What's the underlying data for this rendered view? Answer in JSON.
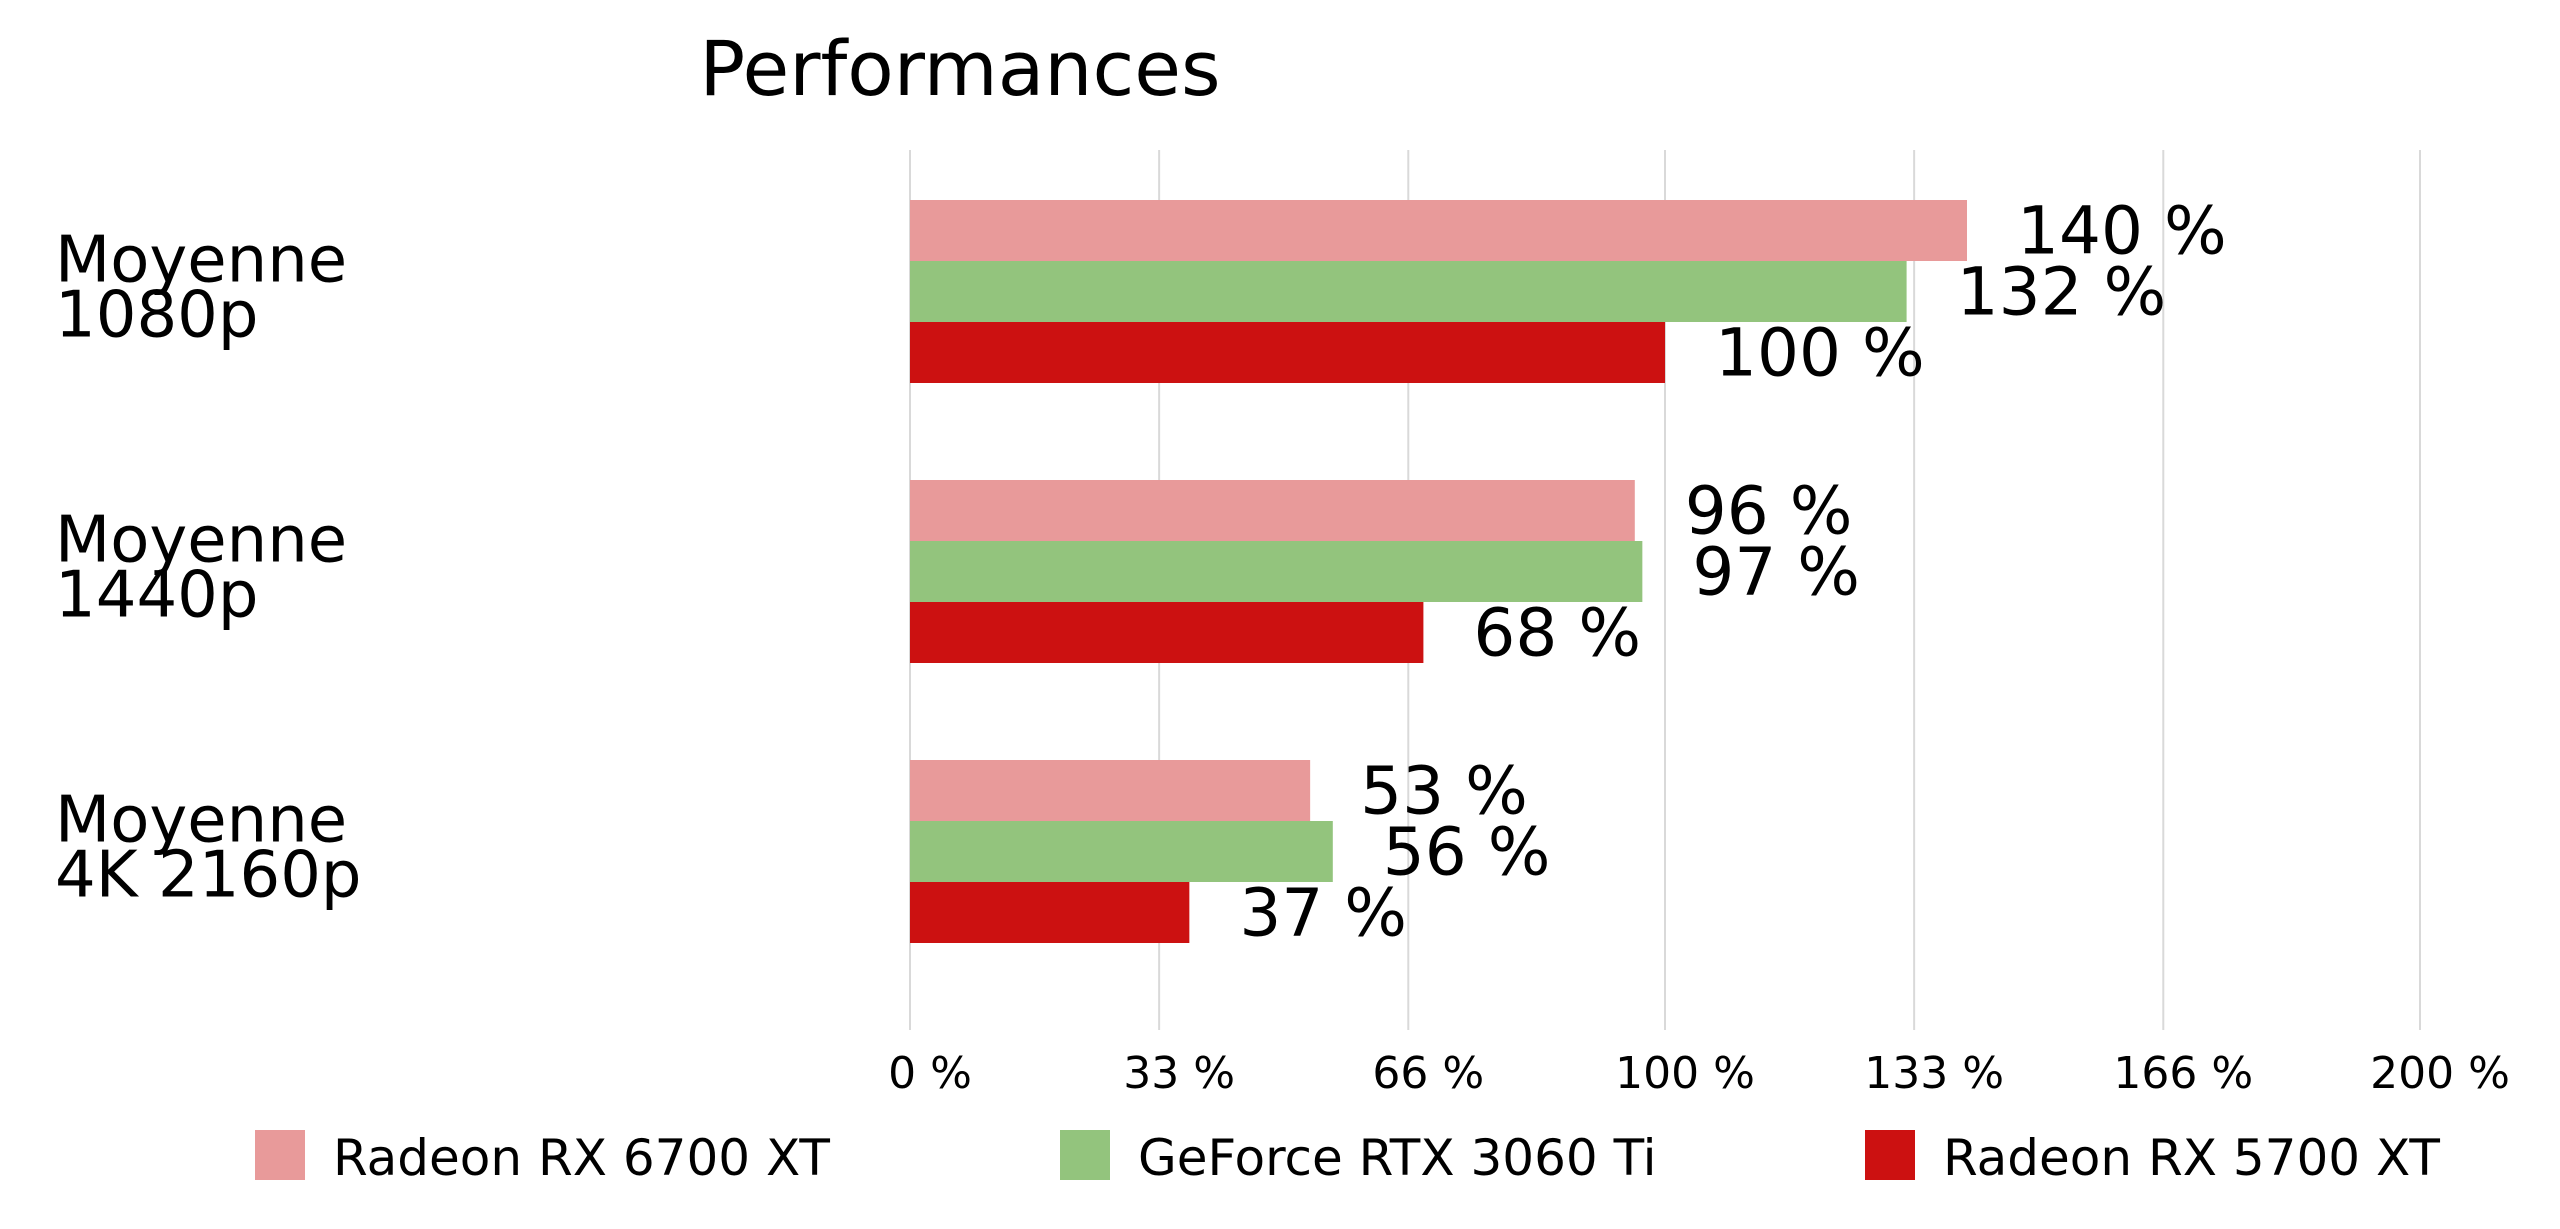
{
  "chart_data": {
    "type": "bar",
    "orientation": "horizontal",
    "title": "Performances",
    "categories": [
      "Moyenne 1080p",
      "Moyenne 1440p",
      "Moyenne 4K 2160p"
    ],
    "category_lines": [
      [
        "Moyenne",
        "1080p"
      ],
      [
        "Moyenne",
        "1440p"
      ],
      [
        "Moyenne",
        "4K 2160p"
      ]
    ],
    "series": [
      {
        "name": "Radeon RX 6700 XT",
        "color": "#e89a9a",
        "values": [
          140,
          96,
          53
        ]
      },
      {
        "name": "GeForce RTX 3060 Ti",
        "color": "#93c47d",
        "values": [
          132,
          97,
          56
        ]
      },
      {
        "name": "Radeon RX 5700 XT",
        "color": "#cc1111",
        "values": [
          100,
          68,
          37
        ]
      }
    ],
    "value_suffix": " %",
    "xlim": [
      0,
      200
    ],
    "xticks": [
      {
        "value": 0,
        "label": "0 %"
      },
      {
        "value": 33,
        "label": "33 %"
      },
      {
        "value": 66,
        "label": "66 %"
      },
      {
        "value": 100,
        "label": "100 %"
      },
      {
        "value": 133,
        "label": "133 %"
      },
      {
        "value": 166,
        "label": "166 %"
      },
      {
        "value": 200,
        "label": "200 %"
      }
    ],
    "grid": true,
    "legend": "bottom",
    "xlabel": "",
    "ylabel": ""
  }
}
